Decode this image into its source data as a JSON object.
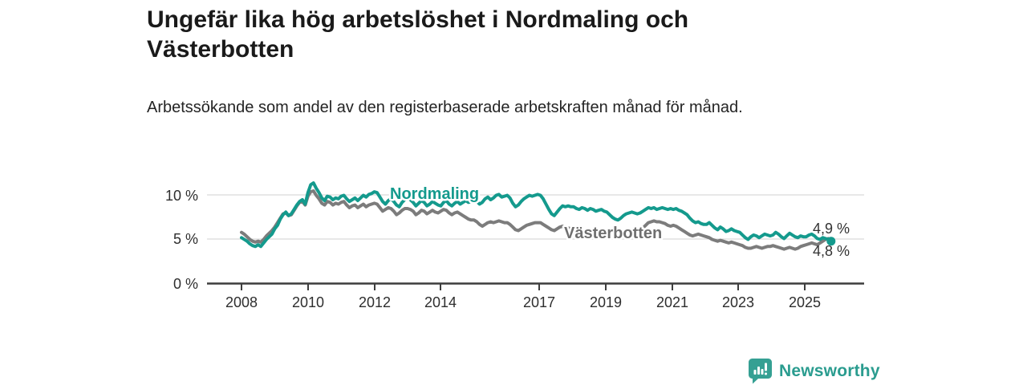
{
  "header": {
    "title": "Ungefär lika hög arbetslöshet i Nordmaling och Västerbotten",
    "subtitle": "Arbetssökande som andel av den registerbaserade arbetskraften månad för månad."
  },
  "chart_data": {
    "type": "line",
    "title": "Ungefär lika hög arbetslöshet i Nordmaling och Västerbotten",
    "unit": "%",
    "x_start": "2008-01",
    "x_end": "2025-10",
    "frequency": "monthly",
    "ylim": [
      0,
      12
    ],
    "grid": "horizontal only at 0, 5 and 10 %",
    "y_tick_labels": [
      "10 %",
      "5 %",
      "0 %"
    ],
    "x_tick_labels": [
      "2008",
      "2010",
      "2012",
      "2014",
      "2017",
      "2019",
      "2021",
      "2023",
      "2025"
    ],
    "legend_position": "labels inline on lines",
    "series": [
      {
        "name": "Nordmaling",
        "color": "#149a8d",
        "end_value": 4.8,
        "end_label": "4,8 %",
        "end_dot": true,
        "values": [
          5.2,
          5.0,
          4.8,
          4.5,
          4.3,
          4.2,
          4.4,
          4.2,
          4.6,
          5.0,
          5.3,
          5.6,
          6.2,
          6.6,
          7.3,
          7.8,
          8.1,
          7.7,
          7.9,
          8.4,
          8.9,
          9.3,
          9.5,
          9.0,
          10.3,
          11.2,
          11.4,
          10.8,
          10.3,
          9.7,
          9.4,
          9.9,
          9.8,
          9.5,
          9.7,
          9.6,
          9.9,
          10.0,
          9.6,
          9.3,
          9.5,
          9.7,
          9.4,
          9.7,
          10.0,
          9.8,
          10.1,
          10.2,
          10.4,
          10.3,
          9.8,
          9.3,
          9.0,
          9.4,
          9.6,
          9.3,
          8.9,
          8.7,
          9.2,
          9.5,
          9.7,
          9.5,
          9.2,
          8.8,
          9.1,
          9.4,
          9.2,
          8.8,
          9.0,
          9.3,
          9.1,
          8.9,
          8.8,
          9.2,
          9.4,
          9.0,
          8.8,
          9.1,
          9.3,
          9.0,
          9.2,
          9.4,
          9.2,
          9.3,
          9.5,
          9.3,
          9.0,
          9.2,
          9.6,
          9.8,
          9.5,
          9.7,
          10.0,
          10.1,
          9.8,
          9.9,
          10.0,
          9.7,
          9.1,
          8.7,
          8.9,
          9.3,
          9.6,
          9.8,
          10.0,
          9.9,
          10.0,
          10.1,
          10.0,
          9.6,
          9.0,
          8.4,
          7.9,
          7.7,
          8.1,
          8.5,
          8.8,
          8.7,
          8.8,
          8.7,
          8.7,
          8.5,
          8.4,
          8.6,
          8.5,
          8.3,
          8.5,
          8.4,
          8.2,
          8.3,
          8.4,
          8.2,
          8.1,
          7.8,
          7.5,
          7.3,
          7.2,
          7.4,
          7.7,
          7.9,
          8.0,
          8.1,
          8.0,
          7.9,
          8.0,
          8.2,
          8.4,
          8.6,
          8.5,
          8.6,
          8.4,
          8.5,
          8.6,
          8.5,
          8.4,
          8.5,
          8.4,
          8.5,
          8.3,
          8.2,
          8.0,
          7.8,
          7.4,
          7.1,
          6.9,
          7.0,
          6.8,
          6.7,
          6.7,
          6.9,
          6.6,
          6.3,
          6.1,
          6.4,
          6.2,
          5.9,
          6.0,
          6.2,
          6.0,
          5.9,
          5.8,
          5.5,
          5.2,
          5.0,
          5.3,
          5.5,
          5.4,
          5.2,
          5.4,
          5.6,
          5.5,
          5.4,
          5.5,
          5.8,
          5.6,
          5.3,
          5.1,
          5.4,
          5.7,
          5.5,
          5.3,
          5.2,
          5.4,
          5.3,
          5.3,
          5.5,
          5.6,
          5.4,
          5.1,
          5.0,
          5.2,
          5.1,
          5.0,
          4.8
        ]
      },
      {
        "name": "Västerbotten",
        "color": "#7c7c7c",
        "end_value": 4.9,
        "end_label": "4,9 %",
        "end_dot": false,
        "values": [
          5.8,
          5.6,
          5.3,
          5.0,
          4.8,
          4.7,
          4.8,
          4.7,
          5.0,
          5.4,
          5.7,
          6.0,
          6.4,
          6.9,
          7.4,
          7.9,
          8.0,
          7.7,
          7.8,
          8.3,
          8.8,
          9.2,
          9.3,
          8.9,
          9.9,
          10.4,
          10.5,
          10.0,
          9.6,
          9.1,
          8.9,
          9.3,
          9.2,
          8.9,
          9.1,
          9.0,
          9.2,
          9.3,
          8.9,
          8.6,
          8.8,
          8.9,
          8.6,
          8.8,
          9.0,
          8.7,
          8.9,
          9.0,
          9.1,
          9.0,
          8.6,
          8.2,
          8.4,
          8.6,
          8.5,
          8.2,
          7.8,
          8.0,
          8.3,
          8.5,
          8.5,
          8.4,
          8.2,
          7.8,
          8.0,
          8.3,
          8.2,
          7.9,
          8.1,
          8.3,
          8.1,
          8.0,
          8.2,
          8.4,
          8.3,
          8.0,
          7.8,
          8.0,
          8.1,
          7.9,
          7.7,
          7.5,
          7.3,
          7.2,
          7.2,
          7.0,
          6.7,
          6.5,
          6.7,
          6.9,
          7.0,
          6.9,
          7.0,
          7.1,
          7.0,
          6.9,
          6.9,
          6.7,
          6.4,
          6.1,
          6.0,
          6.2,
          6.4,
          6.6,
          6.7,
          6.8,
          6.9,
          6.9,
          6.9,
          6.7,
          6.5,
          6.3,
          6.1,
          6.0,
          6.2,
          6.4,
          6.5,
          6.4,
          6.3,
          6.2,
          6.2,
          6.1,
          6.0,
          5.9,
          5.8,
          5.9,
          6.0,
          5.9,
          5.8,
          5.9,
          5.8,
          5.7,
          5.7,
          5.6,
          5.5,
          5.4,
          5.5,
          5.6,
          5.8,
          5.9,
          6.0,
          6.0,
          5.9,
          6.0,
          6.1,
          6.3,
          6.6,
          6.9,
          7.0,
          7.1,
          7.0,
          7.0,
          6.9,
          6.8,
          6.6,
          6.5,
          6.6,
          6.5,
          6.3,
          6.1,
          5.9,
          5.7,
          5.5,
          5.4,
          5.5,
          5.6,
          5.5,
          5.4,
          5.3,
          5.2,
          5.0,
          4.9,
          4.8,
          4.9,
          4.8,
          4.7,
          4.6,
          4.7,
          4.6,
          4.5,
          4.4,
          4.3,
          4.1,
          4.0,
          4.0,
          4.1,
          4.2,
          4.1,
          4.0,
          4.1,
          4.2,
          4.2,
          4.3,
          4.2,
          4.1,
          4.0,
          3.9,
          4.0,
          4.1,
          4.0,
          3.9,
          4.0,
          4.2,
          4.3,
          4.4,
          4.5,
          4.6,
          4.5,
          4.4,
          4.6,
          4.8,
          5.0,
          5.1,
          4.9
        ]
      }
    ]
  },
  "footer": {
    "brand": "Newsworthy"
  },
  "colors": {
    "accent_teal": "#149a8d",
    "series_gray": "#7c7c7c",
    "grid": "#dadada",
    "axis": "#3d3d3d",
    "logo_teal": "#35a093"
  }
}
